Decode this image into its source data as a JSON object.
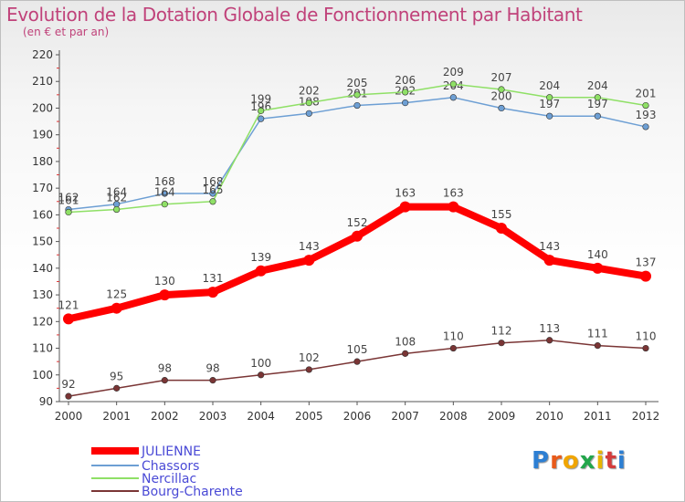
{
  "header": {
    "title": "Evolution de la Dotation Globale de Fonctionnement par Habitant",
    "subtitle": "(en € et par an)"
  },
  "logo": {
    "text": "Proxiti"
  },
  "chart_data": {
    "type": "line",
    "x": [
      "2000",
      "2001",
      "2002",
      "2003",
      "2004",
      "2005",
      "2006",
      "2007",
      "2008",
      "2009",
      "2010",
      "2011",
      "2012"
    ],
    "ylim": [
      90,
      220
    ],
    "yticks": [
      90,
      100,
      110,
      120,
      130,
      140,
      150,
      160,
      170,
      180,
      190,
      200,
      210,
      220
    ],
    "grid": false,
    "legend": "bottom-left",
    "series": [
      {
        "name": "JULIENNE",
        "color": "#ff0000",
        "values": [
          121,
          125,
          130,
          131,
          139,
          143,
          152,
          163,
          163,
          155,
          143,
          140,
          137
        ]
      },
      {
        "name": "Chassors",
        "color": "#6d9fd4",
        "values": [
          162,
          164,
          168,
          168,
          196,
          198,
          201,
          202,
          204,
          200,
          197,
          197,
          193
        ]
      },
      {
        "name": "Nercillac",
        "color": "#8fe066",
        "values": [
          161,
          162,
          164,
          165,
          199,
          202,
          205,
          206,
          209,
          207,
          204,
          204,
          201
        ]
      },
      {
        "name": "Bourg-Charente",
        "color": "#7a3535",
        "values": [
          92,
          95,
          98,
          98,
          100,
          102,
          105,
          108,
          110,
          112,
          113,
          111,
          110
        ]
      }
    ],
    "data_labels": {
      "JULIENNE": [
        "121",
        "125",
        "130",
        "131",
        "139",
        "143",
        "152",
        "163",
        "163",
        "155",
        "143",
        "140",
        "137"
      ],
      "Chassors": [
        "162",
        "164",
        "168",
        "168",
        "196",
        "198",
        "201",
        "202",
        "204",
        "200",
        "197",
        "197",
        "193"
      ],
      "Nercillac": [
        "161",
        "162",
        "164",
        "165",
        "199",
        "202",
        "205",
        "206",
        "209",
        "207",
        "204",
        "204",
        "201"
      ],
      "Bourg-Charente": [
        "92",
        "95",
        "98",
        "98",
        "100",
        "102",
        "105",
        "108",
        "110",
        "112",
        "113",
        "111",
        "110"
      ]
    }
  }
}
